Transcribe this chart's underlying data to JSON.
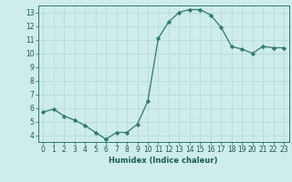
{
  "x": [
    0,
    1,
    2,
    3,
    4,
    5,
    6,
    7,
    8,
    9,
    10,
    11,
    12,
    13,
    14,
    15,
    16,
    17,
    18,
    19,
    20,
    21,
    22,
    23
  ],
  "y": [
    5.7,
    5.9,
    5.4,
    5.1,
    4.7,
    4.2,
    3.7,
    4.2,
    4.2,
    4.8,
    6.5,
    11.1,
    12.3,
    13.0,
    13.2,
    13.2,
    12.8,
    11.9,
    10.5,
    10.3,
    10.0,
    10.5,
    10.4,
    10.4
  ],
  "xlabel": "Humidex (Indice chaleur)",
  "ylim": [
    3.5,
    13.5
  ],
  "xlim": [
    -0.5,
    23.5
  ],
  "yticks": [
    4,
    5,
    6,
    7,
    8,
    9,
    10,
    11,
    12,
    13
  ],
  "xticks": [
    0,
    1,
    2,
    3,
    4,
    5,
    6,
    7,
    8,
    9,
    10,
    11,
    12,
    13,
    14,
    15,
    16,
    17,
    18,
    19,
    20,
    21,
    22,
    23
  ],
  "line_color": "#2d7a6e",
  "marker_color": "#2d7a6e",
  "bg_color": "#cdecea",
  "grid_color": "#b8dbd9",
  "axis_color": "#2d7a6e",
  "text_color": "#1a5c54",
  "xlabel_fontsize": 6.0,
  "tick_fontsize": 5.5
}
